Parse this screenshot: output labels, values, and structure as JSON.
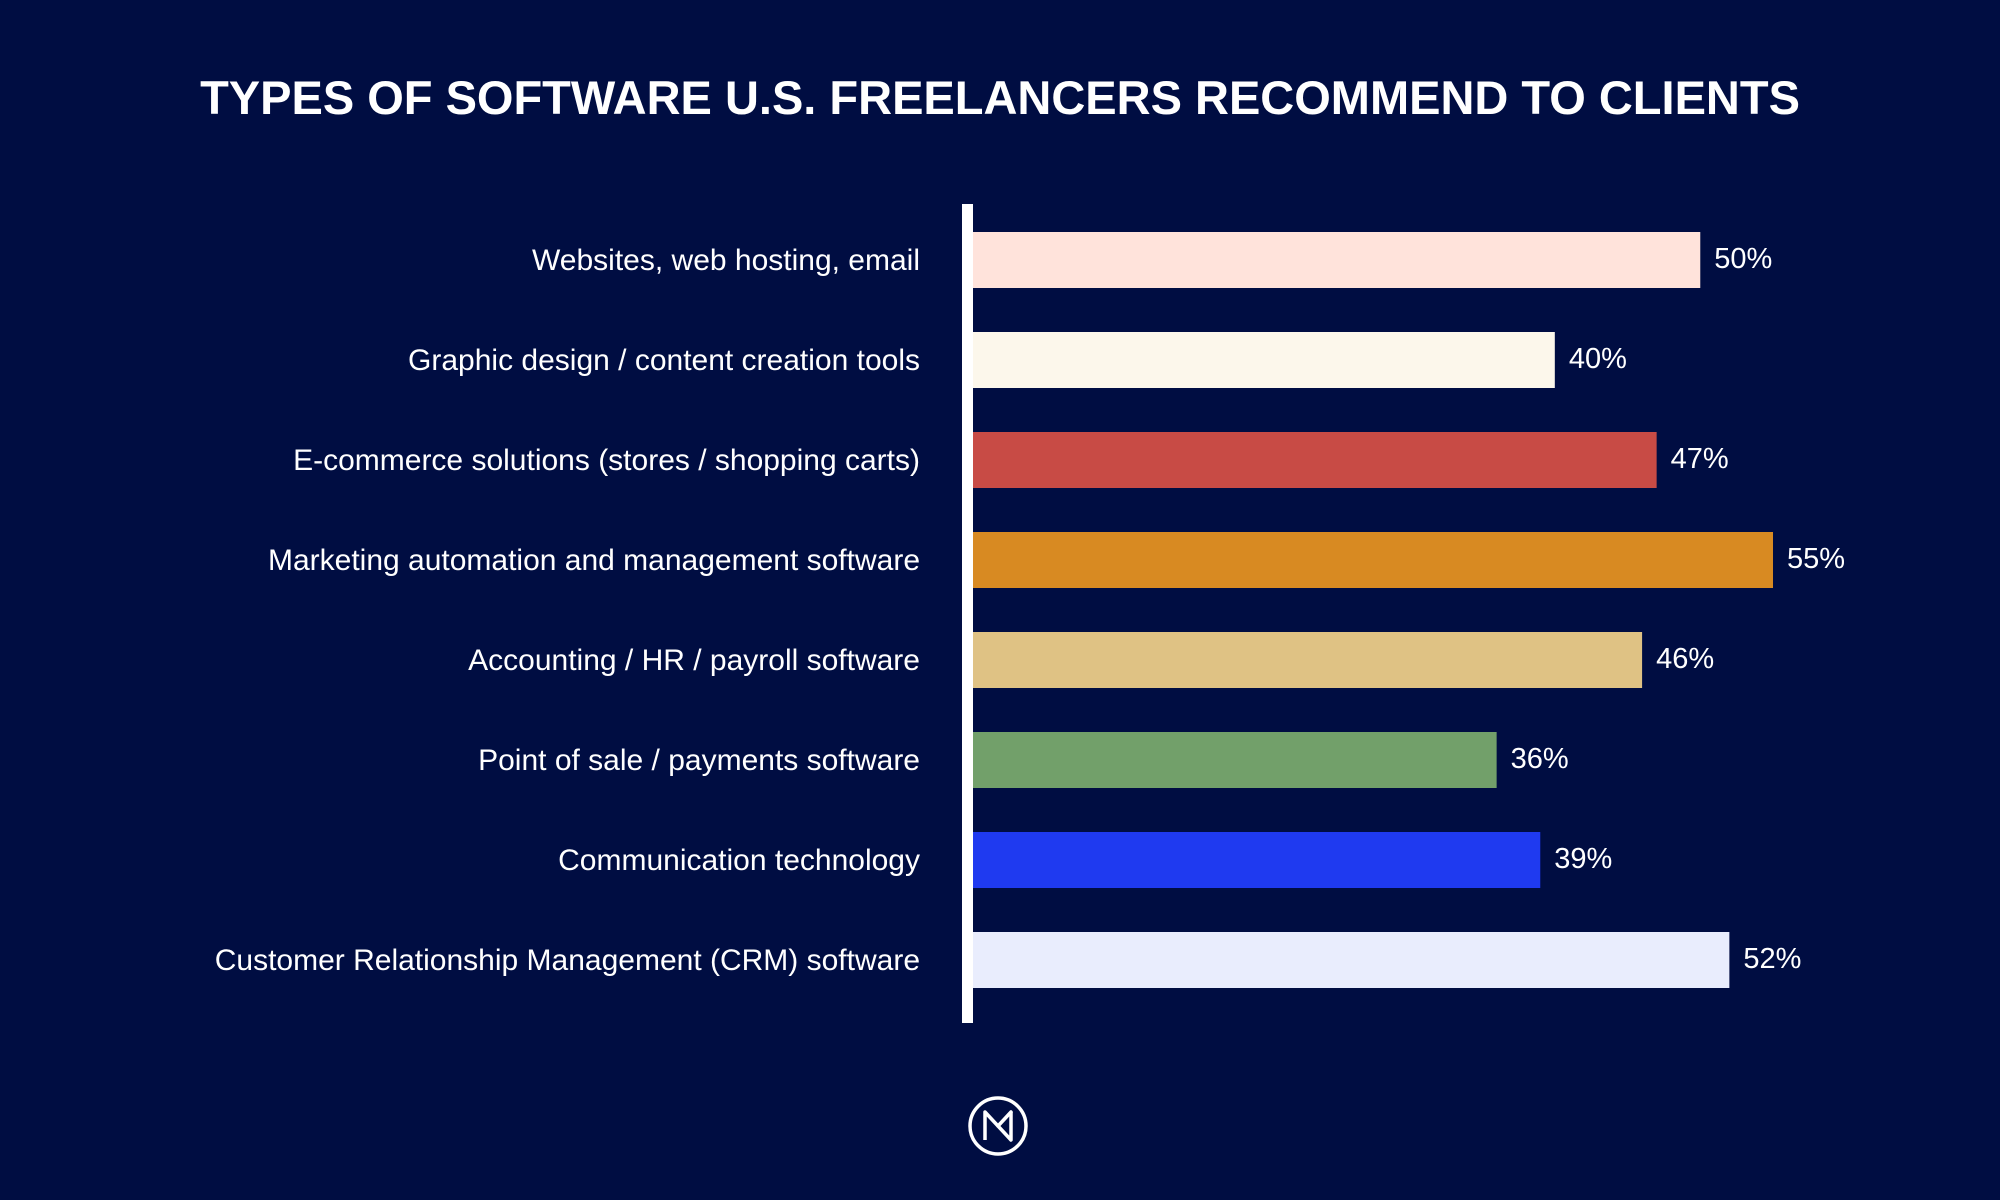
{
  "chart_data": {
    "type": "bar",
    "orientation": "horizontal",
    "title": "TYPES OF SOFTWARE U.S. FREELANCERS RECOMMEND TO CLIENTS",
    "xlabel": "",
    "ylabel": "",
    "xlim": [
      0,
      55
    ],
    "grid": false,
    "categories": [
      "Websites, web hosting, email",
      "Graphic design / content creation tools",
      "E-commerce solutions (stores / shopping carts)",
      "Marketing automation and management software",
      "Accounting / HR / payroll software",
      "Point of sale / payments software",
      "Communication technology",
      "Customer Relationship Management (CRM) software"
    ],
    "values": [
      50,
      40,
      47,
      55,
      46,
      36,
      39,
      52
    ],
    "value_labels": [
      "50%",
      "40%",
      "47%",
      "55%",
      "46%",
      "36%",
      "39%",
      "52%"
    ],
    "colors": [
      "#ffe3db",
      "#fcf7eb",
      "#c84b45",
      "#d88a22",
      "#dfc284",
      "#72a06a",
      "#1f3af0",
      "#e9edfd"
    ]
  },
  "style": {
    "background": "#000d42",
    "axis_color": "#ffffff",
    "text_color": "#ffffff"
  },
  "logo": {
    "icon": "nm-monogram-logo-icon",
    "text": "NM"
  }
}
